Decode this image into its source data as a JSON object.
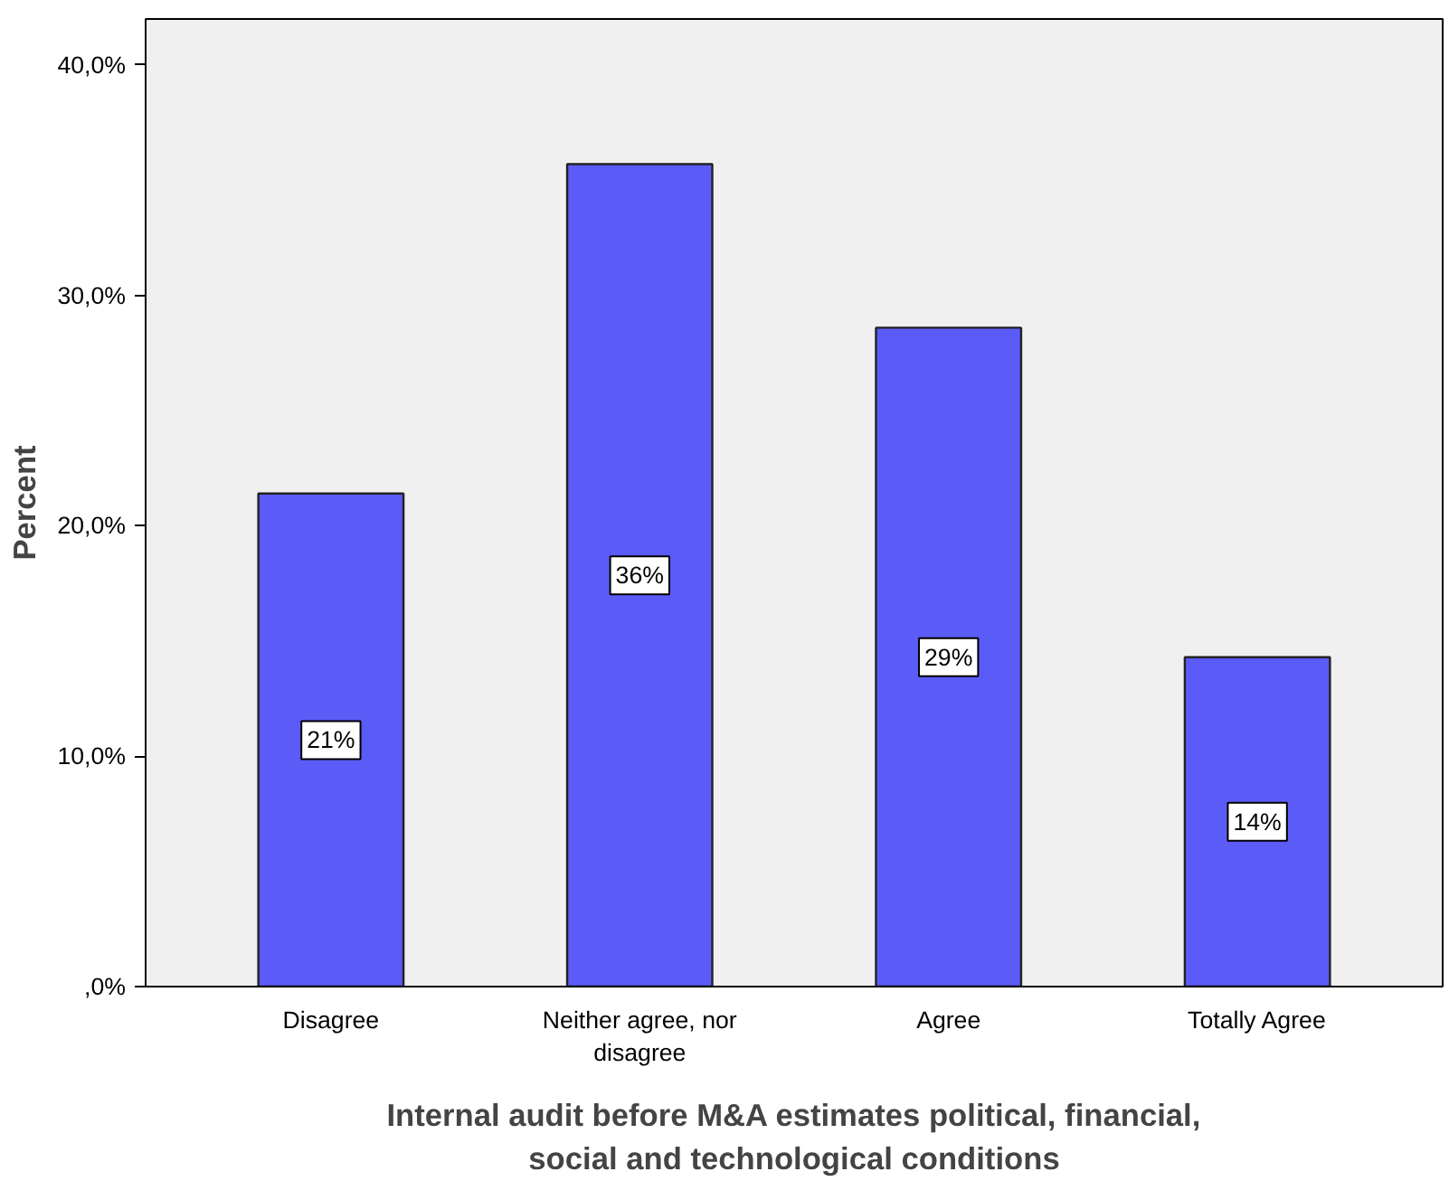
{
  "chart_data": {
    "type": "bar",
    "categories": [
      "Disagree",
      "Neither agree, nor disagree",
      "Agree",
      "Totally Agree"
    ],
    "values": [
      21.4,
      35.7,
      28.6,
      14.3
    ],
    "value_labels": [
      "21%",
      "36%",
      "29%",
      "14%"
    ],
    "color": "#5b5bf7",
    "xlabel": "Internal audit before M&A estimates political, financial, social and technological conditions",
    "ylabel": "Percent",
    "ylim": [
      0,
      42
    ],
    "yticks": [
      {
        "value": 0,
        "label": ",0%"
      },
      {
        "value": 10,
        "label": "10,0%"
      },
      {
        "value": 20,
        "label": "20,0%"
      },
      {
        "value": 30,
        "label": "30,0%"
      },
      {
        "value": 40,
        "label": "40,0%"
      }
    ],
    "grid": false
  }
}
